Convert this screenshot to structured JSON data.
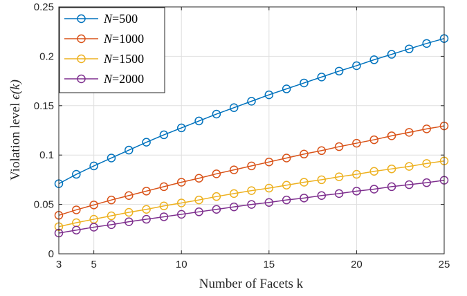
{
  "chart_data": {
    "type": "line",
    "xlabel": "Number of Facets k",
    "ylabel_text": "Violation level ",
    "ylabel_symbol": "ϵ(k)",
    "xlim": [
      3,
      25
    ],
    "ylim": [
      0,
      0.25
    ],
    "xticks": [
      3,
      5,
      10,
      15,
      20,
      25
    ],
    "xtick_labels": [
      "3",
      "5",
      "10",
      "15",
      "20",
      "25"
    ],
    "yticks": [
      0,
      0.05,
      0.1,
      0.15,
      0.2,
      0.25
    ],
    "ytick_labels": [
      "0",
      "0.05",
      "0.1",
      "0.15",
      "0.2",
      "0.25"
    ],
    "grid": true,
    "legend_position": "top-left",
    "x": [
      3,
      4,
      5,
      6,
      7,
      8,
      9,
      10,
      11,
      12,
      13,
      14,
      15,
      16,
      17,
      18,
      19,
      20,
      21,
      22,
      23,
      24,
      25
    ],
    "series": [
      {
        "name_var": "N",
        "name_value": "=500",
        "color": "#0072BD",
        "values": [
          0.071,
          0.0805,
          0.089,
          0.097,
          0.105,
          0.113,
          0.1205,
          0.1275,
          0.1345,
          0.1415,
          0.148,
          0.1545,
          0.161,
          0.167,
          0.173,
          0.179,
          0.185,
          0.1905,
          0.1965,
          0.202,
          0.2075,
          0.213,
          0.218
        ]
      },
      {
        "name_var": "N",
        "name_value": "=1000",
        "color": "#D95319",
        "values": [
          0.039,
          0.0445,
          0.0495,
          0.0545,
          0.059,
          0.0635,
          0.068,
          0.0725,
          0.0765,
          0.081,
          0.085,
          0.089,
          0.093,
          0.097,
          0.101,
          0.1045,
          0.1085,
          0.112,
          0.1155,
          0.1195,
          0.123,
          0.1265,
          0.1295
        ]
      },
      {
        "name_var": "N",
        "name_value": "=1500",
        "color": "#EDB120",
        "values": [
          0.0275,
          0.0315,
          0.035,
          0.0385,
          0.042,
          0.045,
          0.0485,
          0.0515,
          0.0545,
          0.058,
          0.061,
          0.064,
          0.0665,
          0.0695,
          0.0725,
          0.075,
          0.078,
          0.0805,
          0.0835,
          0.086,
          0.0885,
          0.0915,
          0.094
        ]
      },
      {
        "name_var": "N",
        "name_value": "=2000",
        "color": "#7E2F8E",
        "values": [
          0.021,
          0.024,
          0.027,
          0.0295,
          0.0325,
          0.035,
          0.0375,
          0.04,
          0.0425,
          0.045,
          0.0475,
          0.05,
          0.052,
          0.0545,
          0.0565,
          0.059,
          0.061,
          0.0635,
          0.0655,
          0.068,
          0.07,
          0.072,
          0.0745
        ]
      }
    ]
  }
}
